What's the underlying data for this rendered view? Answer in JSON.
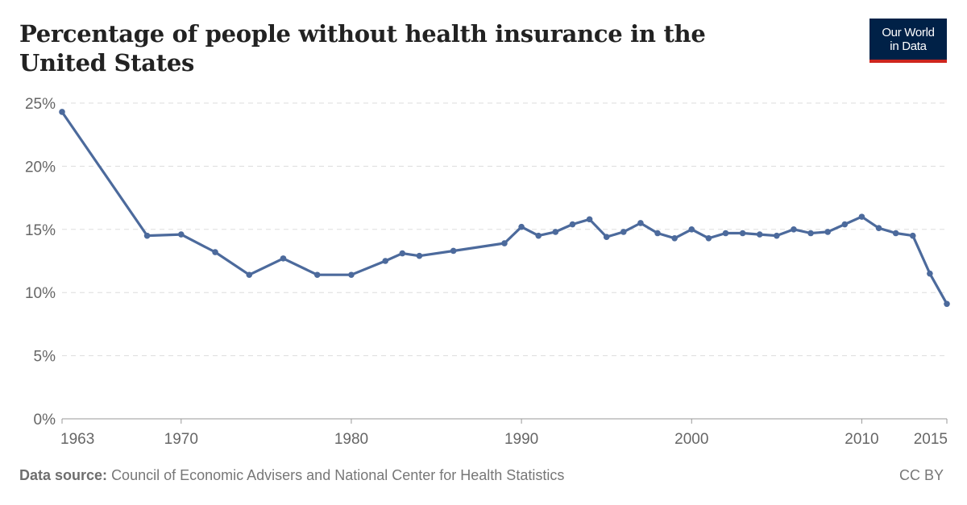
{
  "header": {
    "title": "Percentage of people without health insurance in the United States",
    "logo_line1": "Our World",
    "logo_line2": "in Data"
  },
  "footer": {
    "source_label": "Data source:",
    "source_text": "Council of Economic Advisers and National Center for Health Statistics",
    "license": "CC BY"
  },
  "colors": {
    "line": "#4c6a9c",
    "grid": "#dddddd",
    "logo_bg": "#002147",
    "logo_accent": "#ce261e"
  },
  "chart_data": {
    "type": "line",
    "title": "Percentage of people without health insurance in the United States",
    "xlabel": "",
    "ylabel": "",
    "xlim": [
      1963,
      2015
    ],
    "ylim": [
      0,
      25
    ],
    "y_ticks": [
      0,
      5,
      10,
      15,
      20,
      25
    ],
    "y_tick_labels": [
      "0%",
      "5%",
      "10%",
      "15%",
      "20%",
      "25%"
    ],
    "x_ticks": [
      1963,
      1970,
      1980,
      1990,
      2000,
      2010,
      2015
    ],
    "x_tick_labels": [
      "1963",
      "1970",
      "1980",
      "1990",
      "2000",
      "2010",
      "2015"
    ],
    "grid": "horizontal dashed",
    "series": [
      {
        "x": [
          1963,
          1968,
          1970,
          1972,
          1974,
          1976,
          1978,
          1980,
          1982,
          1983,
          1984,
          1986,
          1989,
          1990,
          1991,
          1992,
          1993,
          1994,
          1995,
          1996,
          1997,
          1998,
          1999,
          2000,
          2001,
          2002,
          2003,
          2004,
          2005,
          2006,
          2007,
          2008,
          2009,
          2010,
          2011,
          2012,
          2013,
          2014,
          2015
        ],
        "values": [
          24.3,
          14.5,
          14.6,
          13.2,
          11.4,
          12.7,
          11.4,
          11.4,
          12.5,
          13.1,
          12.9,
          13.3,
          13.9,
          15.2,
          14.5,
          14.8,
          15.4,
          15.8,
          14.4,
          14.8,
          15.5,
          14.7,
          14.3,
          15.0,
          14.3,
          14.7,
          14.7,
          14.6,
          14.5,
          15.0,
          14.7,
          14.8,
          15.4,
          16.0,
          15.1,
          14.7,
          14.5,
          11.5,
          9.1
        ]
      }
    ]
  }
}
